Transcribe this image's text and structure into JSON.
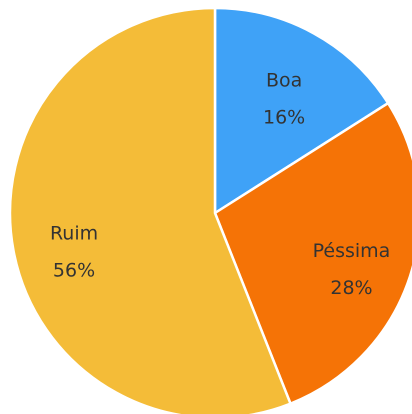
{
  "chart_data": {
    "type": "pie",
    "categories": [
      "Boa",
      "Péssima",
      "Ruim"
    ],
    "values": [
      16,
      28,
      56
    ],
    "value_labels": [
      "16%",
      "28%",
      "56%"
    ],
    "colors": [
      "#3fa2f7",
      "#f57306",
      "#f4bc38"
    ]
  }
}
